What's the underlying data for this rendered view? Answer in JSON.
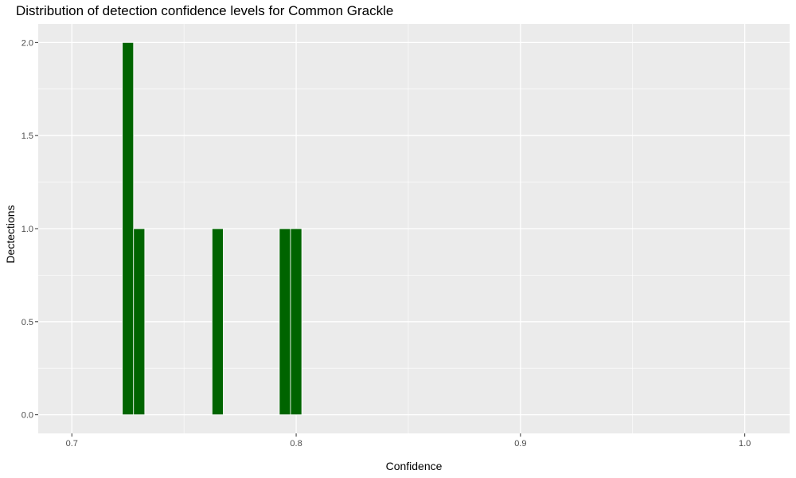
{
  "chart_data": {
    "type": "bar",
    "title": "Distribution of detection confidence levels for Common Grackle",
    "xlabel": "Confidence",
    "ylabel": "Dectections",
    "xlim": [
      0.685,
      1.02
    ],
    "ylim": [
      -0.1,
      2.1
    ],
    "x_ticks": [
      0.7,
      0.8,
      0.9,
      1.0
    ],
    "x_tick_labels": [
      "0.7",
      "0.8",
      "0.9",
      "1.0"
    ],
    "y_ticks": [
      0,
      0.5,
      1,
      1.5,
      2
    ],
    "y_tick_labels": [
      "0.0",
      "0.5",
      "1.0",
      "1.5",
      "2.0"
    ],
    "bin_width": 0.005,
    "bars": [
      {
        "x": 0.725,
        "value": 2
      },
      {
        "x": 0.73,
        "value": 1
      },
      {
        "x": 0.765,
        "value": 1
      },
      {
        "x": 0.795,
        "value": 1
      },
      {
        "x": 0.8,
        "value": 1
      }
    ],
    "grid": true,
    "colors": {
      "bar": "#006400",
      "panel": "#ebebeb",
      "grid": "#ffffff"
    }
  }
}
